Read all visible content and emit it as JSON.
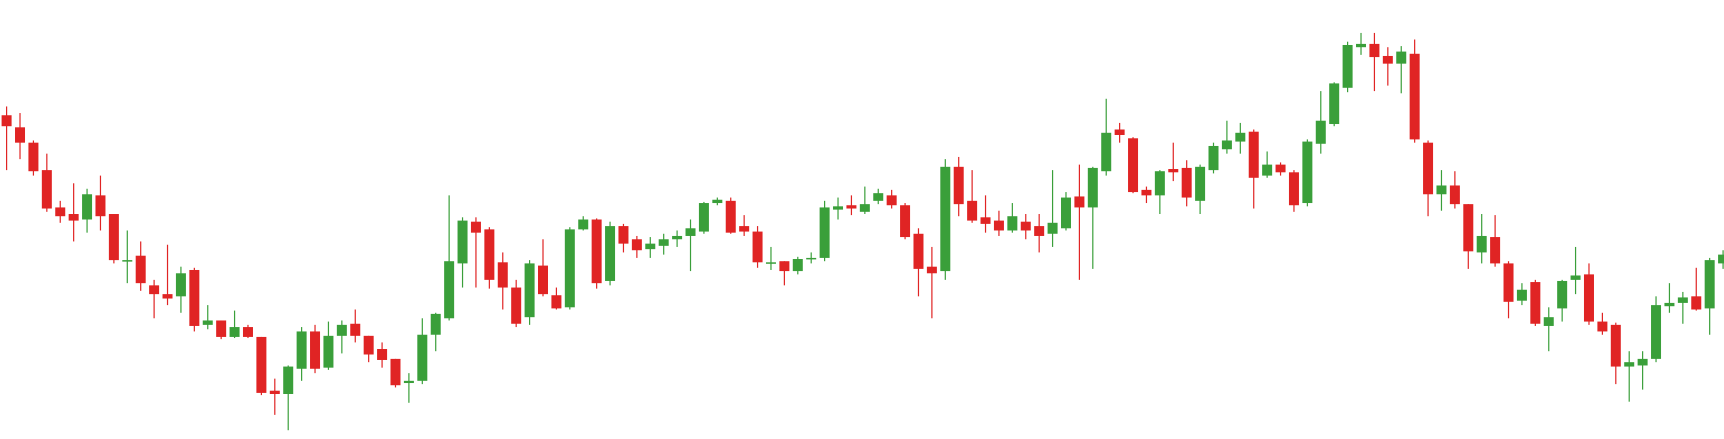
{
  "chart_data": {
    "type": "candlestick",
    "up_color": "#3a9f3a",
    "down_color": "#e02424",
    "ylim": [
      0,
      400
    ],
    "open": [
      295,
      284,
      270,
      245,
      211,
      205,
      200,
      222,
      205,
      162,
      167,
      140,
      132,
      130,
      154,
      104,
      108,
      93,
      102,
      93,
      44,
      41,
      64,
      98,
      65,
      94,
      105,
      94,
      82,
      73,
      51,
      53,
      95,
      110,
      160,
      198,
      191,
      161,
      138,
      111,
      158,
      131,
      120,
      191,
      200,
      144,
      194,
      182,
      173,
      176,
      182,
      185,
      189,
      215,
      217,
      194,
      189,
      160,
      162,
      153,
      164,
      165,
      209,
      213,
      207,
      217,
      222,
      213,
      187,
      157,
      153,
      248,
      217,
      202,
      199,
      190,
      198,
      194,
      187,
      192,
      221,
      211,
      244,
      282,
      274,
      227,
      222,
      246,
      247,
      217,
      245,
      264,
      271,
      280,
      240,
      250,
      243,
      215,
      269,
      287,
      320,
      357,
      360,
      349,
      342,
      351,
      270,
      223,
      231,
      214,
      170,
      184,
      160,
      126,
      143,
      103,
      119,
      145,
      150,
      107,
      104,
      66,
      67,
      73,
      121,
      124,
      130,
      119,
      160
    ],
    "high": [
      303,
      297,
      272,
      260,
      217,
      233,
      228,
      240,
      205,
      190,
      180,
      145,
      177,
      157,
      156,
      122,
      108,
      117,
      104,
      93,
      55,
      67,
      102,
      104,
      107,
      108,
      118,
      94,
      88,
      73,
      60,
      110,
      115,
      222,
      202,
      202,
      193,
      170,
      145,
      163,
      182,
      138,
      193,
      203,
      201,
      198,
      196,
      185,
      184,
      187,
      190,
      200,
      216,
      220,
      220,
      204,
      194,
      175,
      162,
      166,
      170,
      217,
      220,
      222,
      230,
      228,
      227,
      215,
      192,
      175,
      255,
      257,
      245,
      222,
      208,
      215,
      205,
      205,
      245,
      225,
      250,
      248,
      310,
      288,
      275,
      230,
      245,
      270,
      254,
      250,
      270,
      290,
      288,
      282,
      262,
      252,
      245,
      273,
      317,
      325,
      362,
      370,
      370,
      357,
      358,
      364,
      272,
      245,
      244,
      214,
      205,
      204,
      162,
      142,
      145,
      120,
      145,
      175,
      160,
      115,
      106,
      80,
      80,
      130,
      142,
      134,
      156,
      165,
      172
    ],
    "low": [
      245,
      255,
      240,
      207,
      197,
      180,
      188,
      190,
      160,
      142,
      135,
      110,
      122,
      115,
      98,
      100,
      91,
      92,
      92,
      40,
      22,
      8,
      53,
      60,
      63,
      78,
      88,
      70,
      65,
      47,
      33,
      50,
      80,
      108,
      138,
      138,
      137,
      118,
      102,
      104,
      130,
      118,
      118,
      190,
      137,
      140,
      170,
      165,
      165,
      168,
      175,
      153,
      187,
      213,
      187,
      185,
      156,
      154,
      140,
      150,
      160,
      162,
      200,
      204,
      205,
      214,
      210,
      182,
      130,
      110,
      145,
      203,
      197,
      188,
      185,
      188,
      182,
      170,
      175,
      190,
      145,
      155,
      240,
      270,
      224,
      215,
      205,
      235,
      212,
      205,
      242,
      260,
      260,
      210,
      238,
      240,
      207,
      212,
      260,
      285,
      316,
      350,
      317,
      322,
      315,
      270,
      203,
      208,
      210,
      155,
      160,
      157,
      110,
      122,
      103,
      80,
      107,
      132,
      104,
      95,
      50,
      34,
      45,
      70,
      115,
      105,
      117,
      95,
      155
    ],
    "close": [
      285,
      270,
      244,
      210,
      203,
      199,
      223,
      203,
      163,
      163,
      142,
      132,
      128,
      151,
      103,
      108,
      93,
      102,
      93,
      42,
      41,
      66,
      98,
      64,
      94,
      104,
      94,
      77,
      72,
      49,
      53,
      95,
      114,
      162,
      199,
      188,
      145,
      138,
      105,
      160,
      132,
      119,
      191,
      200,
      142,
      194,
      178,
      172,
      178,
      182,
      185,
      192,
      215,
      218,
      188,
      189,
      161,
      161,
      153,
      164,
      165,
      211,
      212,
      210,
      214,
      224,
      213,
      184,
      155,
      151,
      248,
      214,
      199,
      196,
      190,
      203,
      190,
      185,
      197,
      220,
      211,
      247,
      279,
      277,
      225,
      222,
      244,
      243,
      220,
      248,
      267,
      272,
      279,
      238,
      250,
      243,
      213,
      271,
      290,
      324,
      359,
      360,
      348,
      342,
      353,
      273,
      223,
      231,
      214,
      171,
      185,
      160,
      125,
      136,
      105,
      111,
      144,
      149,
      107,
      98,
      66,
      70,
      73,
      122,
      124,
      129,
      118,
      163,
      168
    ]
  }
}
